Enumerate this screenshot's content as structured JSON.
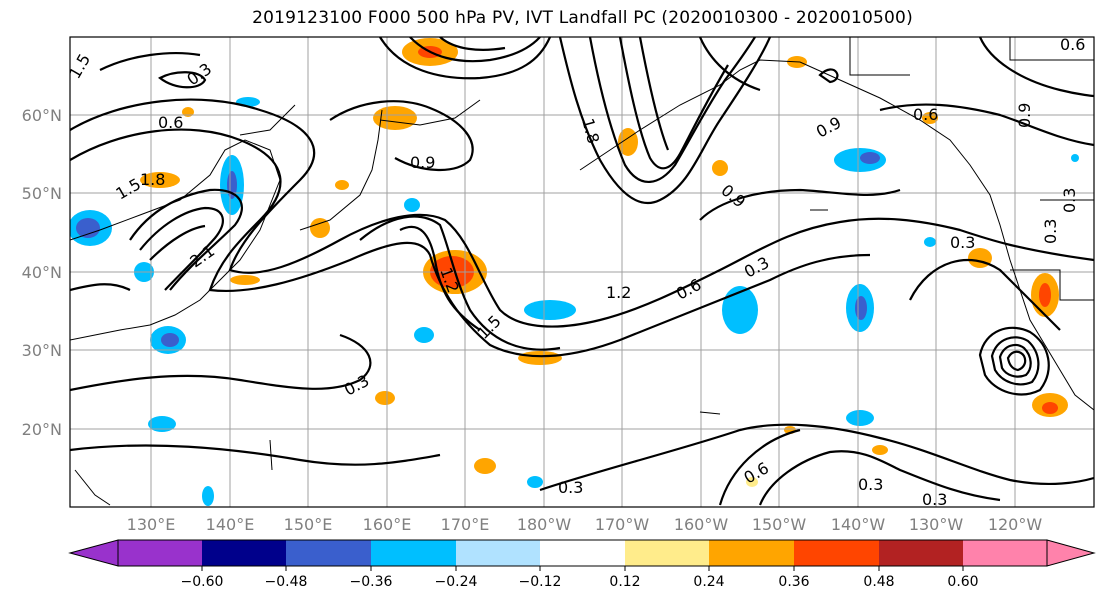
{
  "title": "2019123100 F000 500 hPa PV, IVT Landfall PC (2020010300 - 2020010500)",
  "map": {
    "lat_labels": [
      "60°N",
      "50°N",
      "40°N",
      "30°N",
      "20°N"
    ],
    "lon_labels": [
      "130°E",
      "140°E",
      "150°E",
      "160°E",
      "170°E",
      "180°W",
      "170°W",
      "160°W",
      "150°W",
      "140°W",
      "130°W",
      "120°W"
    ],
    "contour_labels": [
      "0.3",
      "0.6",
      "0.9",
      "1.2",
      "1.5",
      "1.8",
      "2.1",
      "0.6",
      "0.3",
      "0.3",
      "0.9",
      "0.3",
      "0.6",
      "0.3",
      "0.3",
      "0.9",
      "1.2",
      "1.5",
      "1.8",
      "1.5",
      "0.3",
      "0.6",
      "0.9",
      "0.3",
      "0.6",
      "0.3"
    ],
    "colors": {
      "coast": "#000000",
      "grid": "#a0a0a0",
      "contour": "#000000"
    }
  },
  "colorbar": {
    "ticks": [
      "−0.60",
      "−0.48",
      "−0.36",
      "−0.24",
      "−0.12",
      "0.12",
      "0.24",
      "0.36",
      "0.48",
      "0.60"
    ],
    "colors": [
      "#9932cc",
      "#00008b",
      "#3a5fcd",
      "#00bfff",
      "#b0e2ff",
      "#ffffff",
      "#ffec8b",
      "#ffa500",
      "#ff4500",
      "#b22222",
      "#ff82ab"
    ]
  }
}
